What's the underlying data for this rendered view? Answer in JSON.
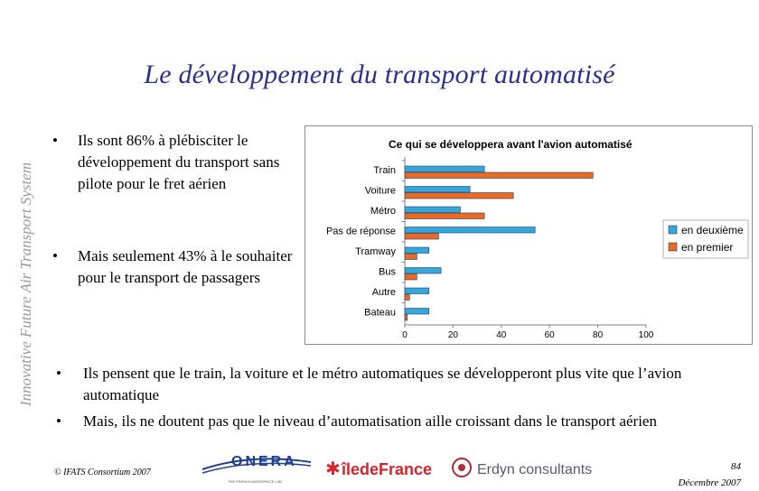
{
  "title": "Le développement du transport automatisé",
  "vertical_label": "Innovative Future Air Transport System",
  "bullets_top": [
    "Ils sont 86% à plébisciter le développement du transport sans pilote pour le fret aérien",
    "Mais seulement 43% à le souhaiter pour le transport de passagers"
  ],
  "bullets_bottom": [
    "Ils pensent que le train, la voiture et le métro automatiques se développeront plus vite que l’avion automatique",
    "Mais, ils ne doutent pas que le niveau d’automatisation aille croissant dans le transport aérien"
  ],
  "footer": {
    "copyright": "© IFATS Consortium 2007",
    "page_number": "84",
    "date": "Décembre 2007",
    "logos": [
      "ONERA",
      "THE FRENCH AEROSPACE LAB",
      "îledeFrance",
      "Erdyn consultants"
    ]
  },
  "colors": {
    "title": "#2b2f8f",
    "series_deuxieme": "#35a7d8",
    "series_premier": "#ea6a22"
  },
  "chart_data": {
    "type": "bar",
    "orientation": "horizontal",
    "title": "Ce qui se développera avant l'avion automatisé",
    "categories": [
      "Train",
      "Voiture",
      "Métro",
      "Pas de réponse",
      "Tramway",
      "Bus",
      "Autre",
      "Bateau"
    ],
    "series": [
      {
        "name": "en deuxième",
        "values": [
          33,
          27,
          23,
          54,
          10,
          15,
          10,
          10
        ]
      },
      {
        "name": "en premier",
        "values": [
          78,
          45,
          33,
          14,
          5,
          5,
          2,
          1
        ]
      }
    ],
    "xlim": [
      0,
      100
    ],
    "xticks": [
      "0",
      "20",
      "40",
      "60",
      "80",
      "100"
    ],
    "legend": "right",
    "grid": false
  }
}
